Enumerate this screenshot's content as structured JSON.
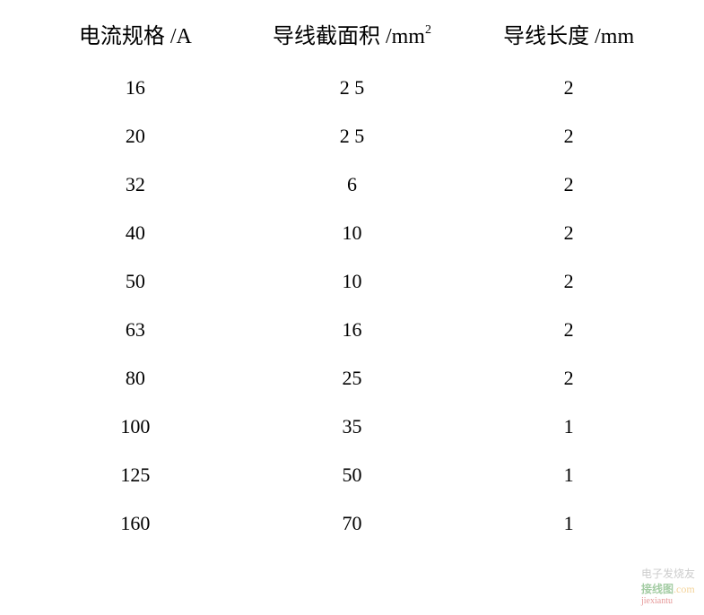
{
  "table": {
    "columns": [
      {
        "label": "电流规格 /A",
        "align": "center"
      },
      {
        "label_html": "导线截面积 /mm",
        "sup": "2",
        "align": "center"
      },
      {
        "label": "导线长度 /mm",
        "align": "center"
      }
    ],
    "rows": [
      {
        "current": "16",
        "area": "2 5",
        "length": "2"
      },
      {
        "current": "20",
        "area": "2 5",
        "length": "2"
      },
      {
        "current": "32",
        "area": "6",
        "length": "2"
      },
      {
        "current": "40",
        "area": "10",
        "length": "2"
      },
      {
        "current": "50",
        "area": "10",
        "length": "2"
      },
      {
        "current": "63",
        "area": "16",
        "length": "2"
      },
      {
        "current": "80",
        "area": "25",
        "length": "2"
      },
      {
        "current": "100",
        "area": "35",
        "length": "1"
      },
      {
        "current": "125",
        "area": "50",
        "length": "1"
      },
      {
        "current": "160",
        "area": "70",
        "length": "1"
      }
    ],
    "header_fontsize": 24,
    "data_fontsize": 22,
    "text_color": "#000000",
    "background_color": "#ffffff",
    "row_spacing": 28
  },
  "watermark": {
    "line1": "电子发烧友",
    "line2": "接线图",
    "domain": ".com",
    "sub": "jiexiantu"
  }
}
